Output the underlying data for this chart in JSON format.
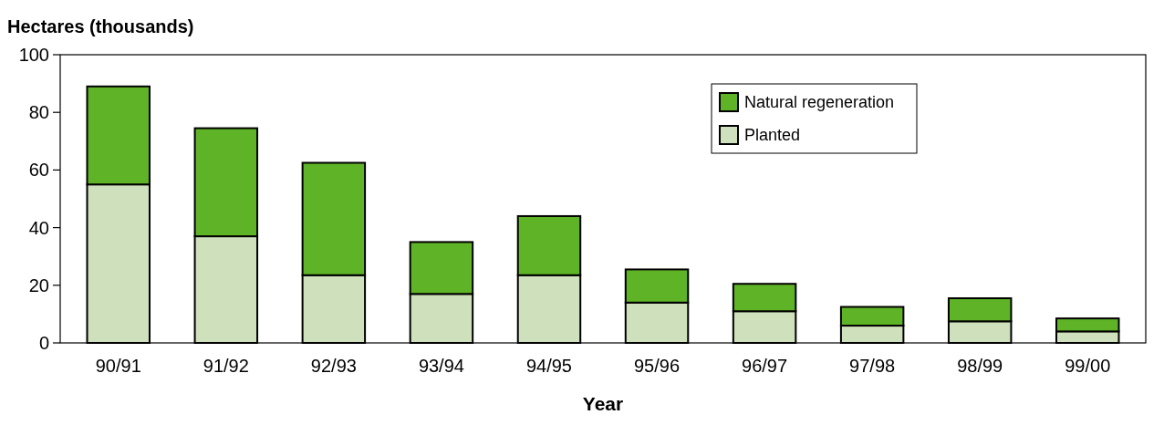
{
  "chart_data": {
    "type": "bar",
    "stacked": true,
    "xlabel": "Year",
    "ylabel": "Hectares (thousands)",
    "categories": [
      "90/91",
      "91/92",
      "92/93",
      "93/94",
      "94/95",
      "95/96",
      "96/97",
      "97/98",
      "98/99",
      "99/00"
    ],
    "series": [
      {
        "name": "Planted",
        "color": "#cfe0bc",
        "values": [
          55,
          37,
          23.5,
          17,
          23.5,
          14,
          11,
          6,
          7.5,
          4
        ]
      },
      {
        "name": "Natural regeneration",
        "color": "#5fb327",
        "values": [
          34,
          37.5,
          39,
          18,
          20.5,
          11.5,
          9.5,
          6.5,
          8,
          4.5
        ]
      }
    ],
    "ylim": [
      0,
      100
    ],
    "yticks": [
      0,
      20,
      40,
      60,
      80,
      100
    ],
    "grid": false,
    "legend": "top right"
  }
}
